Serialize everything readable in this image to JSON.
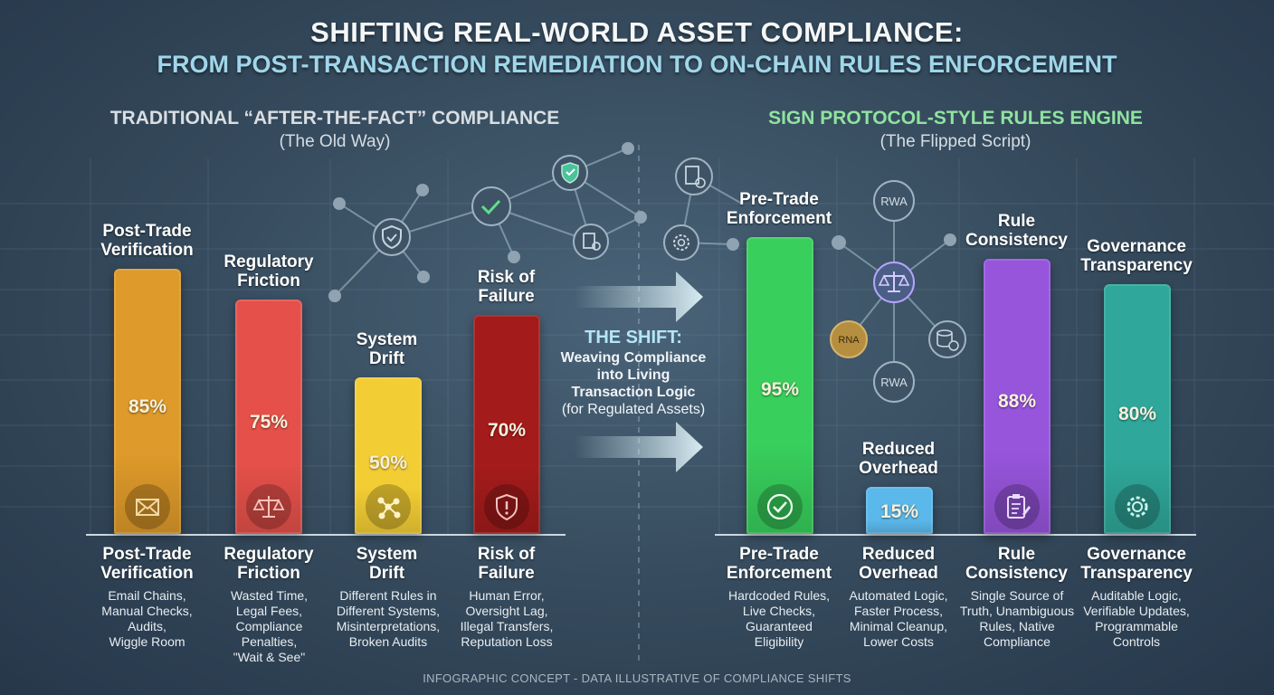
{
  "title": "SHIFTING REAL-WORLD ASSET COMPLIANCE:",
  "subtitle": "FROM POST-TRANSACTION REMEDIATION TO ON-CHAIN RULES ENFORCEMENT",
  "left_panel": {
    "heading": "TRADITIONAL “AFTER-THE-FACT” COMPLIANCE",
    "subheading": "(The Old Way)"
  },
  "right_panel": {
    "heading": "SIGN PROTOCOL-STYLE RULES ENGINE",
    "subheading": "(The Flipped Script)"
  },
  "shift": {
    "title": "THE SHIFT:",
    "line1": "Weaving Compliance",
    "line2": "into Living",
    "line3": "Transaction Logic",
    "line4": "(for Regulated Assets)"
  },
  "network": {
    "node_rwa_1": "RWA",
    "node_rwa_2": "RWA",
    "node_rna": "RNA"
  },
  "footer": "INFOGRAPHIC CONCEPT - DATA ILLUSTRATIVE OF COMPLIANCE SHIFTS",
  "colors": {
    "c0": "#de9a2a",
    "c1": "#e5504a",
    "c2": "#f3cd34",
    "c3": "#a31b1b",
    "c4": "#38cf5c",
    "c5": "#5bb8ea",
    "c6": "#9755dc",
    "c7": "#2fa79a",
    "heading_left": "#d9dee3",
    "heading_right": "#8fe39f"
  },
  "chart_data": {
    "type": "bar",
    "title": "SHIFTING REAL-WORLD ASSET COMPLIANCE",
    "ylim": [
      0,
      100
    ],
    "categories": [
      "Post-Trade Verification",
      "Regulatory Friction",
      "System Drift",
      "Risk of Failure",
      "Pre-Trade Enforcement",
      "Reduced Overhead",
      "Rule Consistency",
      "Governance Transparency"
    ],
    "values": [
      85,
      75,
      50,
      70,
      95,
      15,
      88,
      80
    ],
    "bars": [
      {
        "line1": "Post-Trade",
        "line2": "Verification",
        "value": 85,
        "value_label": "85%",
        "icon": "envelope-icon",
        "desc": [
          "Email Chains,",
          "Manual Checks,",
          "Audits,",
          "Wiggle Room"
        ]
      },
      {
        "line1": "Regulatory",
        "line2": "Friction",
        "value": 75,
        "value_label": "75%",
        "icon": "scales-icon",
        "desc": [
          "Wasted Time,",
          "Legal Fees,",
          "Compliance",
          "Penalties,",
          "\"Wait & See\""
        ]
      },
      {
        "line1": "System",
        "line2": "Drift",
        "value": 50,
        "value_label": "50%",
        "icon": "network-icon",
        "desc": [
          "Different Rules in",
          "Different Systems,",
          "Misinterpretations,",
          "Broken Audits"
        ]
      },
      {
        "line1": "Risk of",
        "line2": "Failure",
        "value": 70,
        "value_label": "70%",
        "icon": "alert-shield-icon",
        "desc": [
          "Human Error,",
          "Oversight Lag,",
          "Illegal Transfers,",
          "Reputation Loss"
        ]
      },
      {
        "line1": "Pre-Trade",
        "line2": "Enforcement",
        "value": 95,
        "value_label": "95%",
        "icon": "check-circle-icon",
        "desc": [
          "Hardcoded Rules,",
          "Live Checks,",
          "Guaranteed",
          "Eligibility"
        ]
      },
      {
        "line1": "Reduced",
        "line2": "Overhead",
        "value": 15,
        "value_label": "15%",
        "icon": "none",
        "desc": [
          "Automated Logic,",
          "Faster Process,",
          "Minimal Cleanup,",
          "Lower Costs"
        ]
      },
      {
        "line1": "Rule",
        "line2": "Consistency",
        "value": 88,
        "value_label": "88%",
        "icon": "clipboard-icon",
        "desc": [
          "Single Source of",
          "Truth, Unambiguous",
          "Rules, Native",
          "Compliance"
        ]
      },
      {
        "line1": "Governance",
        "line2": "Transparency",
        "value": 80,
        "value_label": "80%",
        "icon": "gear-icon",
        "desc": [
          "Auditable Logic,",
          "Verifiable Updates,",
          "Programmable",
          "Controls"
        ]
      }
    ]
  }
}
